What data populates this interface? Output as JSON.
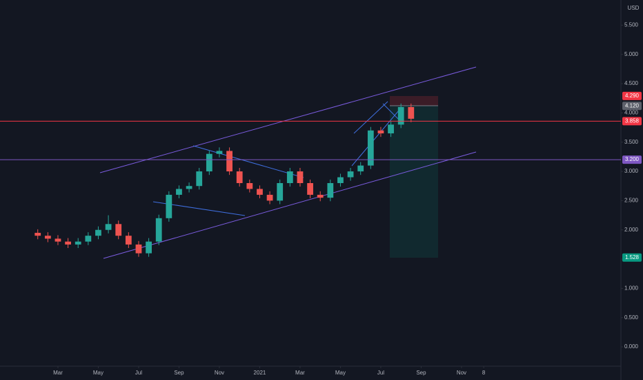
{
  "chart_data": {
    "type": "candlestick",
    "currency": "USD",
    "x": [
      1.0,
      1.5,
      2.0,
      2.5,
      3.0,
      3.5,
      4.0,
      4.5,
      5.0,
      5.5,
      6.0,
      6.5,
      7.0,
      7.5,
      8.0,
      8.5,
      9.0,
      9.5,
      10.0,
      10.5,
      11.0,
      11.5,
      12.0,
      12.5,
      13.0,
      13.5,
      14.0,
      14.5,
      15.0,
      15.5,
      16.0,
      16.5,
      17.0,
      17.5,
      18.0,
      18.5,
      19.0,
      19.5
    ],
    "open": [
      1.95,
      1.9,
      1.85,
      1.8,
      1.75,
      1.8,
      1.9,
      2.0,
      2.1,
      1.9,
      1.75,
      1.6,
      1.8,
      2.2,
      2.6,
      2.7,
      2.75,
      3.0,
      3.3,
      3.35,
      3.0,
      2.8,
      2.7,
      2.6,
      2.5,
      2.8,
      3.0,
      2.8,
      2.6,
      2.55,
      2.8,
      2.9,
      3.0,
      3.1,
      3.7,
      3.65,
      3.8,
      4.1
    ],
    "high": [
      2.01,
      1.96,
      1.91,
      1.86,
      1.86,
      1.96,
      2.06,
      2.25,
      2.16,
      1.96,
      1.81,
      1.86,
      2.26,
      2.66,
      2.76,
      2.81,
      3.06,
      3.36,
      3.41,
      3.41,
      3.06,
      2.86,
      2.76,
      2.66,
      2.86,
      3.06,
      3.06,
      2.86,
      2.66,
      2.86,
      2.96,
      3.06,
      3.16,
      3.76,
      3.76,
      3.86,
      4.16,
      4.16
    ],
    "low": [
      1.84,
      1.79,
      1.74,
      1.69,
      1.69,
      1.74,
      1.84,
      1.94,
      1.84,
      1.69,
      1.54,
      1.54,
      1.74,
      2.14,
      2.54,
      2.64,
      2.69,
      2.94,
      3.24,
      2.94,
      2.74,
      2.64,
      2.54,
      2.44,
      2.44,
      2.74,
      2.74,
      2.54,
      2.49,
      2.49,
      2.74,
      2.84,
      2.94,
      3.04,
      3.59,
      3.59,
      3.74,
      3.84
    ],
    "close": [
      1.9,
      1.85,
      1.8,
      1.75,
      1.8,
      1.9,
      2.0,
      2.1,
      1.9,
      1.75,
      1.6,
      1.8,
      2.2,
      2.6,
      2.7,
      2.75,
      3.0,
      3.3,
      3.35,
      3.0,
      2.8,
      2.7,
      2.6,
      2.5,
      2.8,
      3.0,
      2.8,
      2.6,
      2.55,
      2.8,
      2.9,
      3.0,
      3.1,
      3.7,
      3.65,
      3.8,
      4.1,
      3.9
    ],
    "up_color": "#26a69a",
    "down_color": "#ef5350",
    "xlim": [
      -0.871,
      29.9
    ],
    "xticks": [
      {
        "value": 2,
        "label": "Mar"
      },
      {
        "value": 4,
        "label": "May"
      },
      {
        "value": 6,
        "label": "Jul"
      },
      {
        "value": 8,
        "label": "Sep"
      },
      {
        "value": 10,
        "label": "Nov"
      },
      {
        "value": 12,
        "label": "2021"
      },
      {
        "value": 14,
        "label": "Mar"
      },
      {
        "value": 16,
        "label": "May"
      },
      {
        "value": 18,
        "label": "Jul"
      },
      {
        "value": 20,
        "label": "Sep"
      },
      {
        "value": 22,
        "label": "Nov"
      },
      {
        "value": 23.1,
        "label": "8"
      }
    ],
    "ylim": [
      -0.33,
      5.93
    ],
    "yticks": [
      {
        "value": 0,
        "label": "0.000"
      },
      {
        "value": 0.5,
        "label": "0.500"
      },
      {
        "value": 1,
        "label": "1.000"
      },
      {
        "value": 1.5,
        "label": "1.500"
      },
      {
        "value": 2,
        "label": "2.000"
      },
      {
        "value": 2.5,
        "label": "2.500"
      },
      {
        "value": 3,
        "label": "3.000"
      },
      {
        "value": 3.5,
        "label": "3.500"
      },
      {
        "value": 4,
        "label": "4.000"
      },
      {
        "value": 4.5,
        "label": "4.500"
      },
      {
        "value": 5,
        "label": "5.000"
      },
      {
        "value": 5.5,
        "label": "5.500"
      }
    ],
    "price_labels": [
      {
        "value": 4.29,
        "label": "4.290",
        "color": "#f23645"
      },
      {
        "value": 4.12,
        "label": "4.120",
        "color": "#5d606b"
      },
      {
        "value": 3.858,
        "label": "3.858",
        "color": "#f23645",
        "line": true
      },
      {
        "value": 3.2,
        "label": "3.200",
        "color": "#7e57c2",
        "line": true
      },
      {
        "value": 1.528,
        "label": "1.528",
        "color": "#089981"
      }
    ]
  }
}
